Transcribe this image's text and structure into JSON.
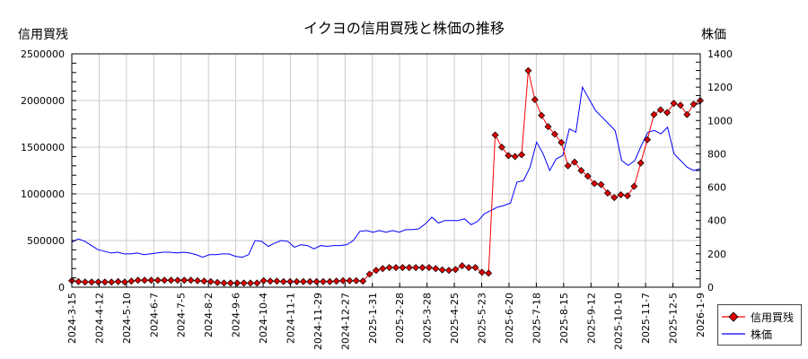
{
  "chart_data": {
    "type": "line",
    "title": "イクヨの信用買残と株価の推移",
    "ylabel_left": "信用買残",
    "ylabel_right": "株価",
    "xlabel": "",
    "ylim_left": [
      0,
      2500000
    ],
    "ylim_right": [
      0,
      1400
    ],
    "yticks_left": [
      "0",
      "500000",
      "1000000",
      "1500000",
      "2000000",
      "2500000"
    ],
    "yticks_right": [
      "0",
      "200",
      "400",
      "600",
      "800",
      "1000",
      "1200",
      "1400"
    ],
    "xtick_labels": [
      "2024-3-15",
      "2024-4-12",
      "2024-5-10",
      "2024-6-7",
      "2024-7-5",
      "2024-8-2",
      "2024-9-6",
      "2024-10-4",
      "2024-11-1",
      "2024-11-29",
      "2024-12-27",
      "2025-1-31",
      "2025-2-28",
      "2025-3-28",
      "2025-4-25",
      "2025-5-23",
      "2025-6-20",
      "2025-7-18",
      "2025-8-15",
      "2025-9-12",
      "2025-10-10",
      "2025-11-7",
      "2025-12-5",
      "2026-1-9"
    ],
    "grid": true,
    "legend_position": "bottom-right",
    "colors": {
      "margin": "#ff0000",
      "price": "#0000ff",
      "grid": "#cccccc"
    },
    "series": [
      {
        "name": "信用買残",
        "axis": "left",
        "marker": "diamond",
        "values": [
          70000,
          60000,
          55000,
          55000,
          55000,
          55000,
          55000,
          60000,
          55000,
          65000,
          75000,
          75000,
          75000,
          75000,
          75000,
          75000,
          75000,
          75000,
          75000,
          70000,
          65000,
          60000,
          50000,
          45000,
          45000,
          45000,
          45000,
          45000,
          45000,
          70000,
          65000,
          65000,
          60000,
          60000,
          60000,
          60000,
          60000,
          60000,
          60000,
          60000,
          65000,
          70000,
          70000,
          70000,
          65000,
          140000,
          180000,
          200000,
          210000,
          210000,
          210000,
          210000,
          210000,
          210000,
          210000,
          200000,
          185000,
          180000,
          190000,
          230000,
          210000,
          210000,
          160000,
          150000,
          1630000,
          1500000,
          1410000,
          1400000,
          1420000,
          2320000,
          2010000,
          1840000,
          1720000,
          1640000,
          1550000,
          1300000,
          1340000,
          1250000,
          1190000,
          1110000,
          1100000,
          1010000,
          960000,
          990000,
          980000,
          1080000,
          1330000,
          1580000,
          1850000,
          1900000,
          1870000,
          1970000,
          1950000,
          1850000,
          1960000,
          2000000
        ]
      },
      {
        "name": "株価",
        "axis": "right",
        "values": [
          270,
          290,
          275,
          250,
          225,
          215,
          205,
          210,
          200,
          200,
          205,
          195,
          200,
          205,
          210,
          210,
          205,
          210,
          205,
          195,
          180,
          195,
          195,
          200,
          200,
          185,
          180,
          195,
          280,
          275,
          245,
          265,
          280,
          275,
          240,
          255,
          250,
          230,
          250,
          245,
          250,
          250,
          255,
          280,
          335,
          340,
          330,
          340,
          330,
          340,
          330,
          345,
          345,
          350,
          380,
          420,
          385,
          400,
          400,
          400,
          410,
          375,
          395,
          440,
          460,
          480,
          490,
          505,
          630,
          640,
          720,
          870,
          800,
          700,
          770,
          790,
          950,
          930,
          1200,
          1130,
          1060,
          1020,
          980,
          940,
          760,
          730,
          760,
          850,
          930,
          940,
          920,
          960,
          800,
          760,
          720,
          700,
          710
        ]
      }
    ]
  },
  "legend": {
    "items": [
      {
        "label": "信用買残",
        "color": "#ff0000",
        "marker": "diamond"
      },
      {
        "label": "株価",
        "color": "#0000ff",
        "marker": "none"
      }
    ]
  }
}
